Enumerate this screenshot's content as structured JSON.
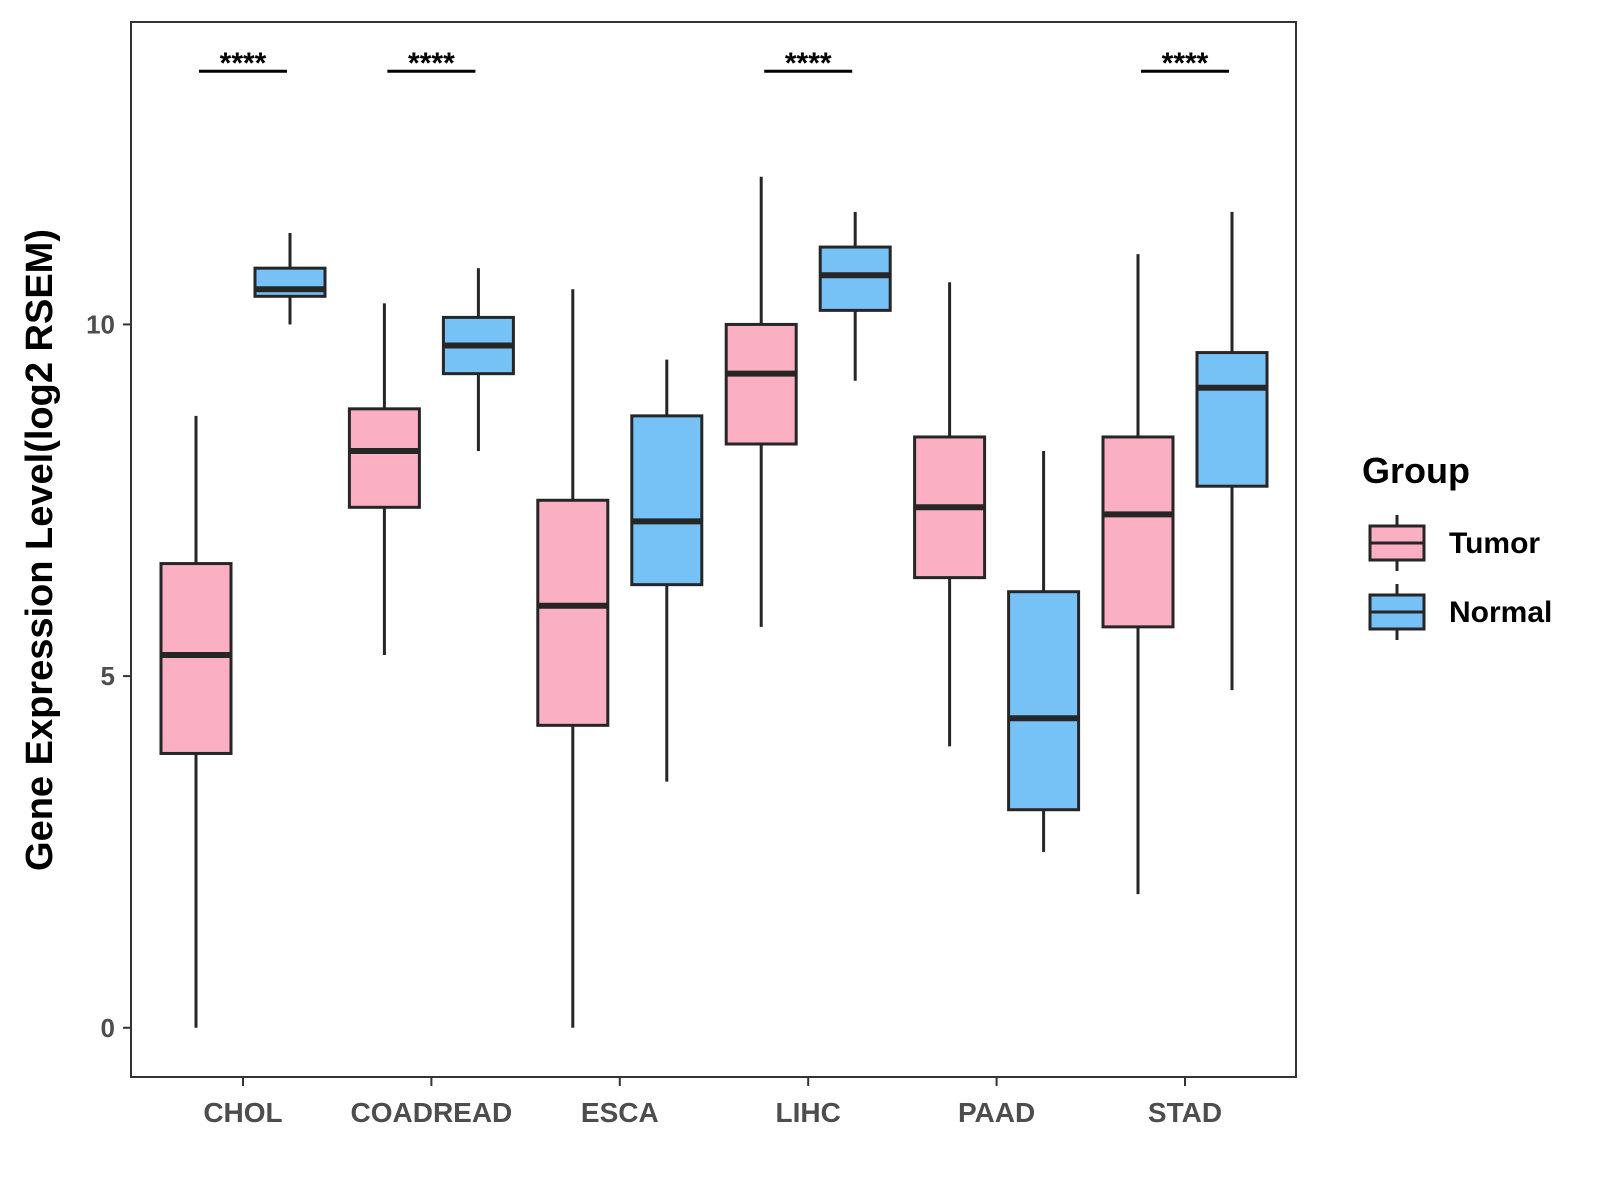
{
  "chart_data": {
    "type": "boxplot",
    "ylabel": "Gene Expression Level(log2 RSEM)",
    "xlabel": "",
    "ylim": [
      -0.7,
      14.3
    ],
    "y_ticks": [
      0,
      5,
      10
    ],
    "legend": {
      "title": "Group",
      "position": "right",
      "entries": [
        {
          "name": "Tumor",
          "color": "#FAAFC3"
        },
        {
          "name": "Normal",
          "color": "#76C2F7"
        }
      ]
    },
    "categories": [
      "CHOL",
      "COADREAD",
      "ESCA",
      "LIHC",
      "PAAD",
      "STAD"
    ],
    "series": [
      {
        "name": "Tumor",
        "boxes": [
          {
            "min": 0.0,
            "q1": 3.9,
            "median": 5.3,
            "q3": 6.6,
            "max": 8.7
          },
          {
            "min": 5.3,
            "q1": 7.4,
            "median": 8.2,
            "q3": 8.8,
            "max": 10.3
          },
          {
            "min": 0.0,
            "q1": 4.3,
            "median": 6.0,
            "q3": 7.5,
            "max": 10.5
          },
          {
            "min": 5.7,
            "q1": 8.3,
            "median": 9.3,
            "q3": 10.0,
            "max": 12.1
          },
          {
            "min": 4.0,
            "q1": 6.4,
            "median": 7.4,
            "q3": 8.4,
            "max": 10.6
          },
          {
            "min": 1.9,
            "q1": 5.7,
            "median": 7.3,
            "q3": 8.4,
            "max": 11.0
          }
        ]
      },
      {
        "name": "Normal",
        "boxes": [
          {
            "min": 10.0,
            "q1": 10.4,
            "median": 10.5,
            "q3": 10.8,
            "max": 11.3
          },
          {
            "min": 8.2,
            "q1": 9.3,
            "median": 9.7,
            "q3": 10.1,
            "max": 10.8
          },
          {
            "min": 3.5,
            "q1": 6.3,
            "median": 7.2,
            "q3": 8.7,
            "max": 9.5
          },
          {
            "min": 9.2,
            "q1": 10.2,
            "median": 10.7,
            "q3": 11.1,
            "max": 11.6
          },
          {
            "min": 2.5,
            "q1": 3.1,
            "median": 4.4,
            "q3": 6.2,
            "max": 8.2
          },
          {
            "min": 4.8,
            "q1": 7.7,
            "median": 9.1,
            "q3": 9.6,
            "max": 11.6
          }
        ]
      }
    ],
    "significance": [
      {
        "category": "CHOL",
        "label": "****"
      },
      {
        "category": "COADREAD",
        "label": "****"
      },
      {
        "category": "LIHC",
        "label": "****"
      },
      {
        "category": "STAD",
        "label": "****"
      }
    ],
    "significance_y": 13.6,
    "grid": false
  }
}
